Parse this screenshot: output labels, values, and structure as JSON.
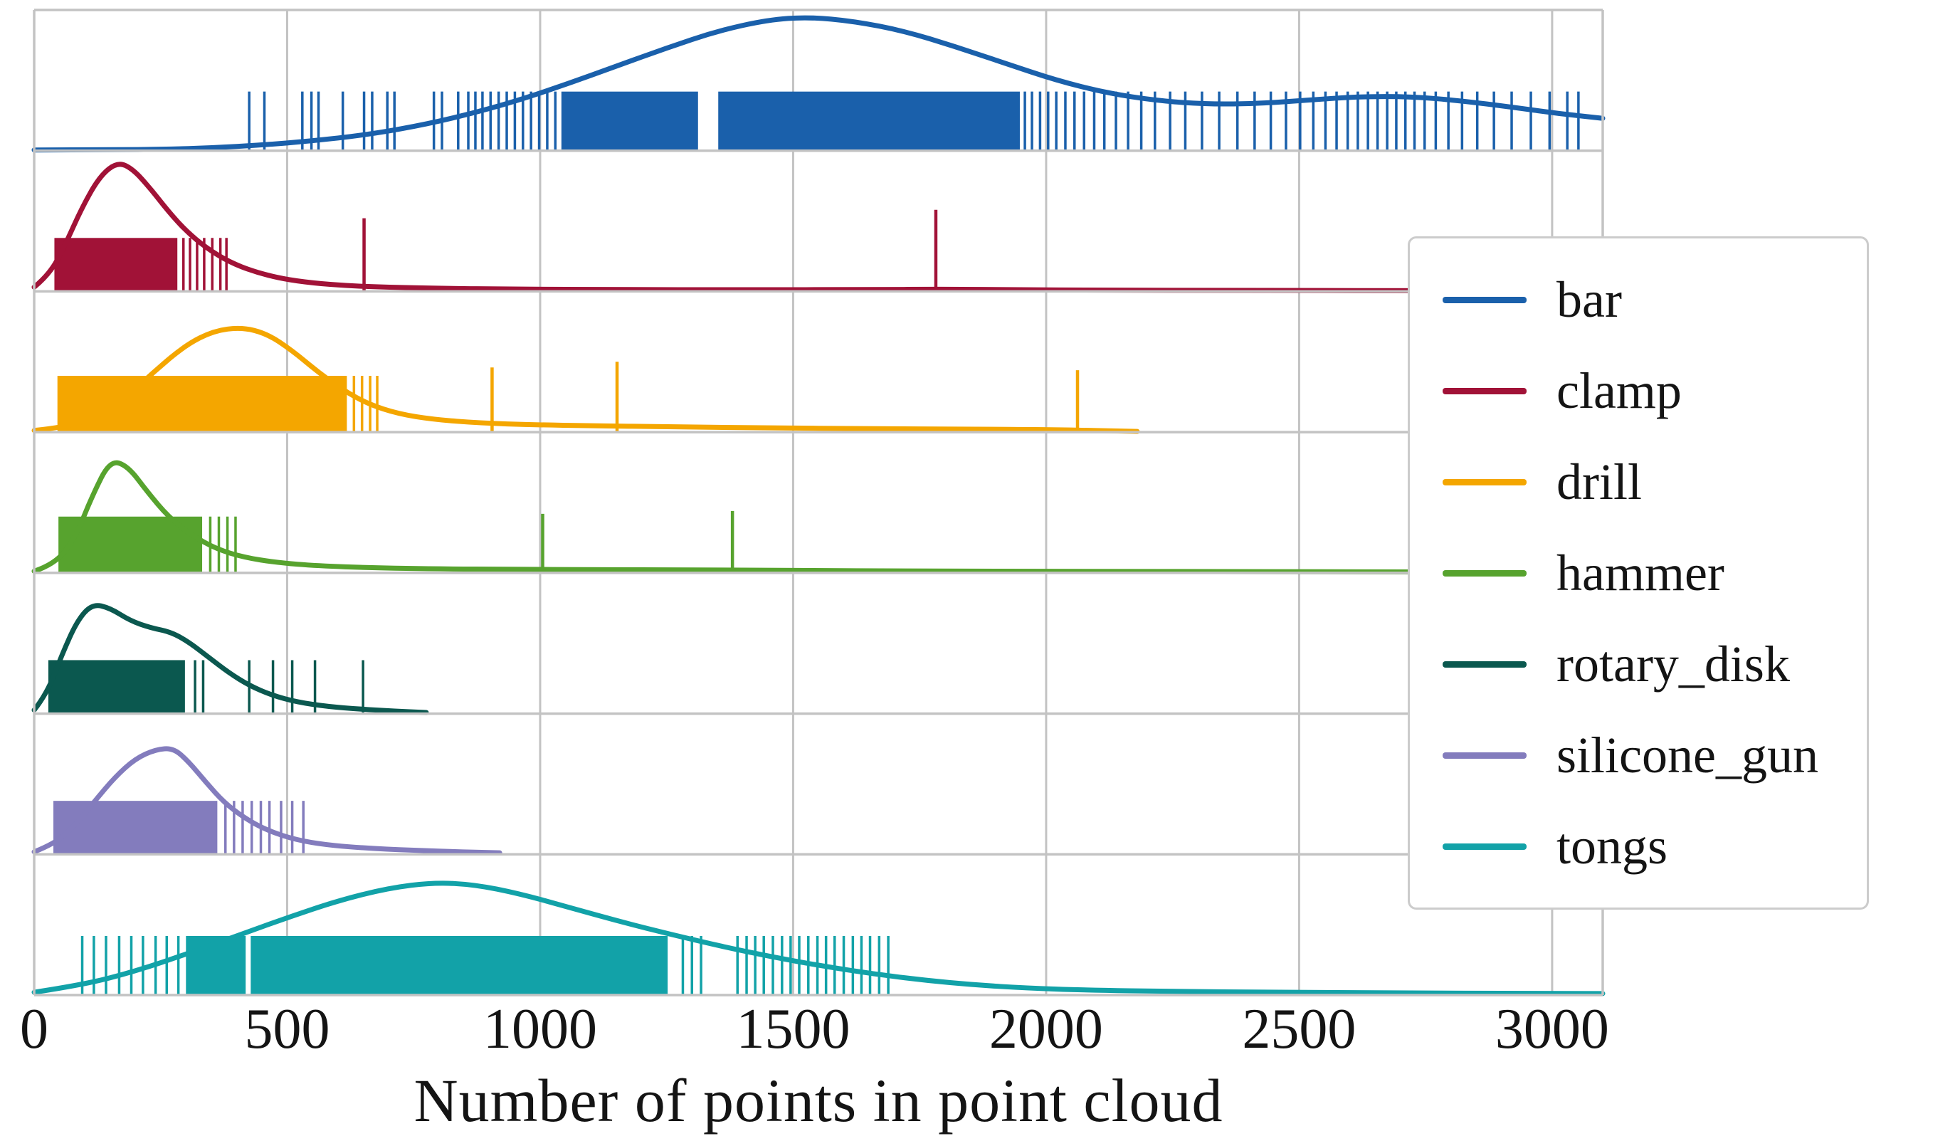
{
  "figure": {
    "background": "#ffffff",
    "text_color": "#141414"
  },
  "chart_data": {
    "type": "line",
    "subtype": "ridgeline_kde_with_rug",
    "title": "",
    "xlabel": "Number of points in point cloud",
    "ylabel": "",
    "x_range": [
      0,
      3100
    ],
    "xticks": [
      0,
      500,
      1000,
      1500,
      2000,
      2500,
      3000
    ],
    "xtick_labels": [
      "0",
      "500",
      "1000",
      "1500",
      "2000",
      "2500",
      "3000"
    ],
    "grid": true,
    "grid_color": "#c3c3c3",
    "legend_position": "center right",
    "series": [
      {
        "name": "bar",
        "color": "#1a60ab",
        "kde": [
          [
            0,
            0.005
          ],
          [
            150,
            0.006
          ],
          [
            260,
            0.01
          ],
          [
            350,
            0.02
          ],
          [
            450,
            0.04
          ],
          [
            550,
            0.07
          ],
          [
            650,
            0.11
          ],
          [
            750,
            0.17
          ],
          [
            850,
            0.25
          ],
          [
            950,
            0.35
          ],
          [
            1050,
            0.47
          ],
          [
            1150,
            0.6
          ],
          [
            1250,
            0.73
          ],
          [
            1350,
            0.85
          ],
          [
            1450,
            0.93
          ],
          [
            1530,
            0.95
          ],
          [
            1620,
            0.92
          ],
          [
            1720,
            0.85
          ],
          [
            1820,
            0.74
          ],
          [
            1920,
            0.62
          ],
          [
            2020,
            0.5
          ],
          [
            2120,
            0.41
          ],
          [
            2220,
            0.355
          ],
          [
            2320,
            0.33
          ],
          [
            2420,
            0.335
          ],
          [
            2520,
            0.36
          ],
          [
            2620,
            0.385
          ],
          [
            2720,
            0.385
          ],
          [
            2820,
            0.355
          ],
          [
            2920,
            0.31
          ],
          [
            3010,
            0.265
          ],
          [
            3100,
            0.23
          ]
        ],
        "rug_height": 0.42,
        "rug_blocks": [
          [
            1042,
            1312
          ],
          [
            1352,
            1948
          ]
        ],
        "rug_ticks": [
          425,
          455,
          530,
          548,
          562,
          610,
          652,
          668,
          698,
          712,
          790,
          806,
          838,
          858,
          872,
          886,
          902,
          918,
          934,
          950,
          966,
          982,
          998,
          1014,
          1030,
          1958,
          1972,
          1988,
          2004,
          2020,
          2038,
          2056,
          2075,
          2095,
          2115,
          2138,
          2162,
          2188,
          2215,
          2245,
          2275,
          2308,
          2342,
          2378,
          2412,
          2444,
          2474,
          2502,
          2528,
          2552,
          2574,
          2596,
          2616,
          2636,
          2655,
          2674,
          2692,
          2710,
          2728,
          2748,
          2770,
          2795,
          2822,
          2852,
          2885,
          2920,
          2958,
          2995,
          3030,
          3052
        ],
        "spikes": []
      },
      {
        "name": "clamp",
        "color": "#a11237",
        "kde": [
          [
            0,
            0.03
          ],
          [
            30,
            0.12
          ],
          [
            60,
            0.32
          ],
          [
            95,
            0.6
          ],
          [
            130,
            0.82
          ],
          [
            165,
            0.92
          ],
          [
            195,
            0.87
          ],
          [
            230,
            0.73
          ],
          [
            265,
            0.57
          ],
          [
            300,
            0.43
          ],
          [
            340,
            0.31
          ],
          [
            385,
            0.21
          ],
          [
            435,
            0.14
          ],
          [
            490,
            0.09
          ],
          [
            550,
            0.06
          ],
          [
            620,
            0.04
          ],
          [
            700,
            0.03
          ],
          [
            800,
            0.022
          ],
          [
            950,
            0.016
          ],
          [
            1150,
            0.013
          ],
          [
            1400,
            0.012
          ],
          [
            1650,
            0.013
          ],
          [
            1800,
            0.016
          ],
          [
            1950,
            0.012
          ],
          [
            2100,
            0.009
          ],
          [
            2400,
            0.007
          ],
          [
            2700,
            0.006
          ],
          [
            2950,
            0.005
          ]
        ],
        "rug_height": 0.38,
        "rug_blocks": [
          [
            40,
            283
          ]
        ],
        "rug_ticks": [
          295,
          308,
          322,
          336,
          352,
          368,
          380
        ],
        "spikes": [
          [
            652,
            0.52
          ],
          [
            1782,
            0.58
          ]
        ]
      },
      {
        "name": "drill",
        "color": "#f4a600",
        "kde": [
          [
            0,
            0.012
          ],
          [
            60,
            0.035
          ],
          [
            120,
            0.1
          ],
          [
            180,
            0.24
          ],
          [
            240,
            0.44
          ],
          [
            300,
            0.62
          ],
          [
            355,
            0.72
          ],
          [
            410,
            0.745
          ],
          [
            460,
            0.7
          ],
          [
            510,
            0.58
          ],
          [
            560,
            0.43
          ],
          [
            610,
            0.3
          ],
          [
            660,
            0.2
          ],
          [
            720,
            0.13
          ],
          [
            790,
            0.09
          ],
          [
            880,
            0.065
          ],
          [
            990,
            0.052
          ],
          [
            1100,
            0.046
          ],
          [
            1250,
            0.038
          ],
          [
            1450,
            0.03
          ],
          [
            1650,
            0.025
          ],
          [
            1850,
            0.021
          ],
          [
            2000,
            0.018
          ],
          [
            2100,
            0.012
          ],
          [
            2180,
            0.005
          ]
        ],
        "rug_height": 0.4,
        "rug_blocks": [
          [
            46,
            618
          ]
        ],
        "rug_ticks": [
          632,
          648,
          664,
          678
        ],
        "spikes": [
          [
            905,
            0.46
          ],
          [
            1152,
            0.5
          ],
          [
            2062,
            0.44
          ]
        ]
      },
      {
        "name": "hammer",
        "color": "#57a32e",
        "kde": [
          [
            0,
            0.012
          ],
          [
            40,
            0.06
          ],
          [
            80,
            0.24
          ],
          [
            115,
            0.55
          ],
          [
            150,
            0.8
          ],
          [
            185,
            0.76
          ],
          [
            225,
            0.57
          ],
          [
            265,
            0.4
          ],
          [
            310,
            0.27
          ],
          [
            360,
            0.17
          ],
          [
            415,
            0.11
          ],
          [
            480,
            0.073
          ],
          [
            560,
            0.05
          ],
          [
            670,
            0.036
          ],
          [
            800,
            0.028
          ],
          [
            950,
            0.026
          ],
          [
            1100,
            0.022
          ],
          [
            1300,
            0.022
          ],
          [
            1500,
            0.017
          ],
          [
            1750,
            0.013
          ],
          [
            2050,
            0.011
          ],
          [
            2400,
            0.009
          ],
          [
            2700,
            0.007
          ],
          [
            2950,
            0.005
          ]
        ],
        "rug_height": 0.4,
        "rug_blocks": [
          [
            48,
            332
          ]
        ],
        "rug_ticks": [
          348,
          365,
          382,
          398
        ],
        "spikes": [
          [
            1005,
            0.42
          ],
          [
            1380,
            0.44
          ]
        ]
      },
      {
        "name": "rotary_disk",
        "color": "#0b584f",
        "kde": [
          [
            0,
            0.025
          ],
          [
            25,
            0.14
          ],
          [
            55,
            0.42
          ],
          [
            85,
            0.66
          ],
          [
            115,
            0.78
          ],
          [
            150,
            0.75
          ],
          [
            190,
            0.66
          ],
          [
            230,
            0.61
          ],
          [
            270,
            0.58
          ],
          [
            305,
            0.51
          ],
          [
            345,
            0.4
          ],
          [
            385,
            0.29
          ],
          [
            425,
            0.2
          ],
          [
            470,
            0.13
          ],
          [
            520,
            0.082
          ],
          [
            580,
            0.05
          ],
          [
            645,
            0.032
          ],
          [
            710,
            0.018
          ],
          [
            775,
            0.008
          ]
        ],
        "rug_height": 0.38,
        "rug_blocks": [
          [
            28,
            298
          ]
        ],
        "rug_ticks": [
          318,
          334,
          425,
          472,
          510,
          555,
          650
        ],
        "spikes": []
      },
      {
        "name": "silicone_gun",
        "color": "#837cbd",
        "kde": [
          [
            0,
            0.018
          ],
          [
            40,
            0.075
          ],
          [
            80,
            0.2
          ],
          [
            120,
            0.38
          ],
          [
            160,
            0.55
          ],
          [
            200,
            0.68
          ],
          [
            240,
            0.745
          ],
          [
            275,
            0.755
          ],
          [
            305,
            0.66
          ],
          [
            340,
            0.51
          ],
          [
            375,
            0.37
          ],
          [
            415,
            0.26
          ],
          [
            455,
            0.18
          ],
          [
            505,
            0.115
          ],
          [
            560,
            0.075
          ],
          [
            630,
            0.05
          ],
          [
            720,
            0.033
          ],
          [
            820,
            0.02
          ],
          [
            920,
            0.011
          ]
        ],
        "rug_height": 0.38,
        "rug_blocks": [
          [
            38,
            362
          ]
        ],
        "rug_ticks": [
          378,
          395,
          412,
          430,
          448,
          465,
          488,
          510,
          532
        ],
        "spikes": []
      },
      {
        "name": "tongs",
        "color": "#12a2a8",
        "kde": [
          [
            0,
            0.02
          ],
          [
            100,
            0.075
          ],
          [
            200,
            0.17
          ],
          [
            300,
            0.29
          ],
          [
            400,
            0.42
          ],
          [
            500,
            0.55
          ],
          [
            600,
            0.67
          ],
          [
            700,
            0.76
          ],
          [
            790,
            0.8
          ],
          [
            870,
            0.785
          ],
          [
            960,
            0.72
          ],
          [
            1060,
            0.62
          ],
          [
            1160,
            0.52
          ],
          [
            1260,
            0.43
          ],
          [
            1360,
            0.345
          ],
          [
            1460,
            0.27
          ],
          [
            1560,
            0.205
          ],
          [
            1660,
            0.15
          ],
          [
            1760,
            0.105
          ],
          [
            1860,
            0.072
          ],
          [
            1960,
            0.05
          ],
          [
            2080,
            0.035
          ],
          [
            2250,
            0.026
          ],
          [
            2450,
            0.02
          ],
          [
            2700,
            0.015
          ],
          [
            2950,
            0.012
          ],
          [
            3100,
            0.011
          ]
        ],
        "rug_height": 0.42,
        "rug_blocks": [
          [
            300,
            418
          ],
          [
            428,
            1252
          ]
        ],
        "rug_ticks": [
          95,
          118,
          142,
          168,
          192,
          215,
          240,
          262,
          285,
          1282,
          1300,
          1318,
          1390,
          1408,
          1425,
          1442,
          1460,
          1478,
          1495,
          1512,
          1530,
          1548,
          1565,
          1582,
          1600,
          1618,
          1635,
          1652,
          1670,
          1688
        ],
        "spikes": []
      }
    ]
  }
}
